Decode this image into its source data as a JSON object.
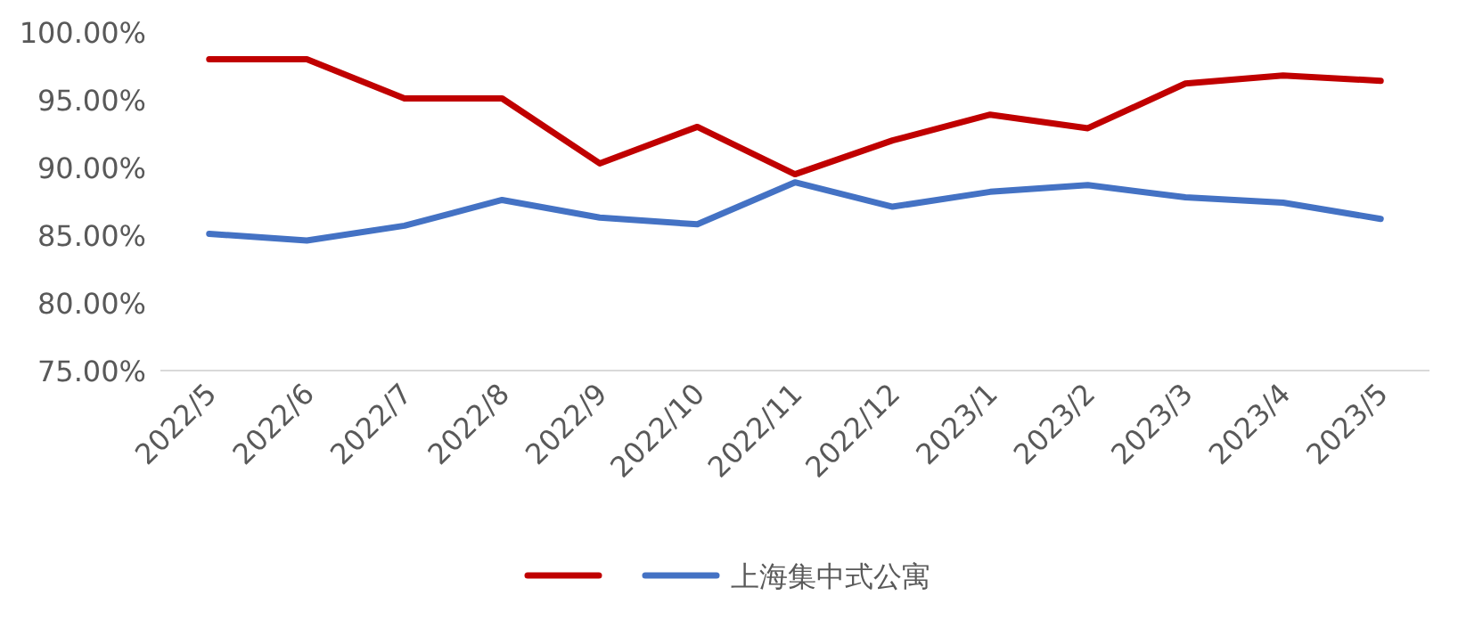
{
  "chart_data": {
    "type": "line",
    "categories": [
      "2022/5",
      "2022/6",
      "2022/7",
      "2022/8",
      "2022/9",
      "2022/10",
      "2022/11",
      "2022/12",
      "2023/1",
      "2023/2",
      "2023/3",
      "2023/4",
      "2023/5"
    ],
    "series": [
      {
        "color": "#c00000",
        "values": [
          98.0,
          98.0,
          95.1,
          95.1,
          90.3,
          93.0,
          89.5,
          92.0,
          93.9,
          92.9,
          96.2,
          96.8,
          96.4
        ]
      },
      {
        "name": "上海集中式公寓",
        "color": "#4472c4",
        "values": [
          85.1,
          84.6,
          85.7,
          87.6,
          86.3,
          85.8,
          88.9,
          87.1,
          88.2,
          88.7,
          87.8,
          87.4,
          86.2
        ]
      }
    ],
    "ylim": [
      75,
      100
    ],
    "yticks": [
      {
        "value": 75,
        "label": "75.00%"
      },
      {
        "value": 80,
        "label": "80.00%"
      },
      {
        "value": 85,
        "label": "85.00%"
      },
      {
        "value": 90,
        "label": "90.00%"
      },
      {
        "value": 95,
        "label": "95.00%"
      },
      {
        "value": 100,
        "label": "100.00%"
      }
    ],
    "legend": "bottom",
    "marker": "none",
    "line_style": "solid"
  }
}
